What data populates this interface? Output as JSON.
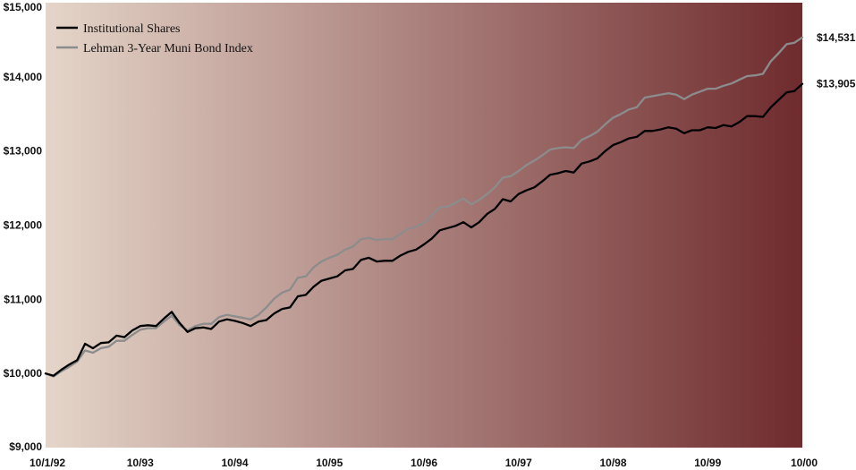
{
  "chart_data": {
    "type": "line",
    "title": "",
    "xlabel": "",
    "ylabel": "",
    "ylim": [
      9000,
      15000
    ],
    "y_ticks": [
      {
        "value": 9000,
        "label": "$9,000"
      },
      {
        "value": 10000,
        "label": "$10,000"
      },
      {
        "value": 11000,
        "label": "$11,000"
      },
      {
        "value": 12000,
        "label": "$12,000"
      },
      {
        "value": 13000,
        "label": "$13,000"
      },
      {
        "value": 14000,
        "label": "$14,000"
      },
      {
        "value": 15000,
        "label": "$15,000"
      }
    ],
    "x_ticks": [
      {
        "value": 0,
        "label": "10/1/92"
      },
      {
        "value": 12,
        "label": "10/93"
      },
      {
        "value": 24,
        "label": "10/94"
      },
      {
        "value": 36,
        "label": "10/95"
      },
      {
        "value": 48,
        "label": "10/96"
      },
      {
        "value": 60,
        "label": "10/97"
      },
      {
        "value": 72,
        "label": "10/98"
      },
      {
        "value": 84,
        "label": "10/99"
      },
      {
        "value": 96,
        "label": "10/00"
      }
    ],
    "xlim": [
      0,
      96
    ],
    "legend_position": "top-left",
    "grid": false,
    "background": {
      "type": "horizontal-gradient",
      "from": "#e5d5c9",
      "to": "#6f2b2e"
    },
    "series": [
      {
        "name": "Institutional Shares",
        "color": "#000000",
        "end_label": "$13,905",
        "values": [
          10000,
          9970,
          10050,
          10120,
          10180,
          10400,
          10340,
          10410,
          10420,
          10510,
          10490,
          10580,
          10640,
          10650,
          10640,
          10740,
          10830,
          10680,
          10560,
          10610,
          10620,
          10600,
          10700,
          10730,
          10710,
          10680,
          10640,
          10700,
          10720,
          10810,
          10870,
          10890,
          11040,
          11060,
          11170,
          11250,
          11280,
          11310,
          11390,
          11410,
          11530,
          11560,
          11510,
          11520,
          11520,
          11590,
          11640,
          11670,
          11740,
          11820,
          11930,
          11960,
          11990,
          12040,
          11970,
          12040,
          12150,
          12220,
          12350,
          12320,
          12420,
          12470,
          12510,
          12590,
          12680,
          12700,
          12730,
          12710,
          12830,
          12860,
          12900,
          13000,
          13080,
          13120,
          13170,
          13190,
          13270,
          13270,
          13290,
          13320,
          13300,
          13240,
          13280,
          13280,
          13320,
          13310,
          13350,
          13330,
          13390,
          13470,
          13470,
          13460,
          13590,
          13690,
          13790,
          13810,
          13905
        ]
      },
      {
        "name": "Lehman 3-Year Muni Bond Index",
        "color": "#8c8c8c",
        "end_label": "$14,531",
        "values": [
          10000,
          9960,
          10030,
          10090,
          10160,
          10310,
          10280,
          10340,
          10360,
          10440,
          10440,
          10520,
          10590,
          10610,
          10610,
          10700,
          10780,
          10650,
          10580,
          10640,
          10670,
          10670,
          10760,
          10790,
          10770,
          10750,
          10730,
          10790,
          10890,
          11010,
          11090,
          11130,
          11290,
          11310,
          11430,
          11510,
          11560,
          11600,
          11670,
          11710,
          11810,
          11830,
          11800,
          11810,
          11810,
          11880,
          11950,
          11980,
          12030,
          12130,
          12240,
          12250,
          12300,
          12360,
          12280,
          12340,
          12420,
          12510,
          12640,
          12660,
          12730,
          12810,
          12870,
          12940,
          13020,
          13040,
          13050,
          13040,
          13150,
          13200,
          13260,
          13360,
          13450,
          13500,
          13560,
          13590,
          13720,
          13740,
          13760,
          13780,
          13760,
          13700,
          13760,
          13800,
          13840,
          13840,
          13880,
          13910,
          13960,
          14010,
          14020,
          14040,
          14210,
          14320,
          14440,
          14460,
          14531
        ]
      }
    ]
  }
}
